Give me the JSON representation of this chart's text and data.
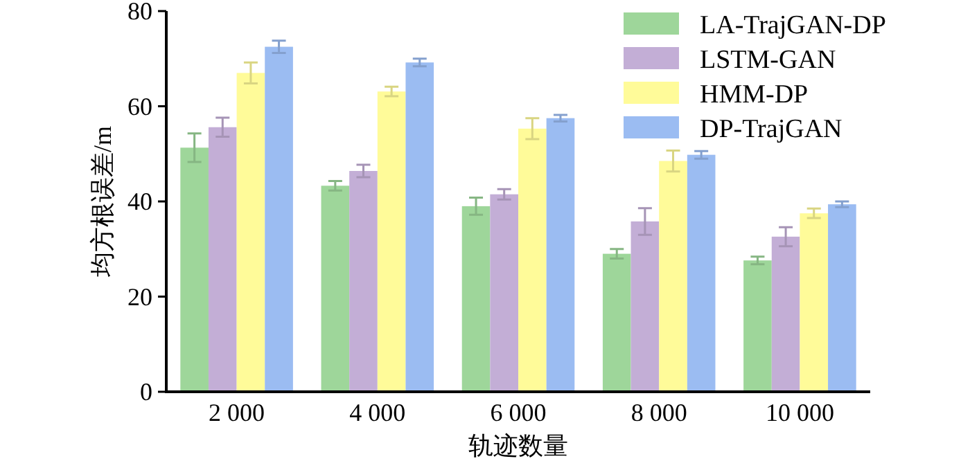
{
  "chart_data": {
    "type": "bar",
    "xlabel": "轨迹数量",
    "ylabel": "均方根误差/m",
    "categories": [
      "2 000",
      "4 000",
      "6 000",
      "8 000",
      "10 000"
    ],
    "series": [
      {
        "name": "LA-TrajGAN-DP",
        "color": "#9ed69a",
        "values": [
          51.3,
          43.3,
          39,
          29,
          27.6
        ],
        "errors": [
          3,
          1,
          1.8,
          1,
          0.8
        ]
      },
      {
        "name": "LSTM-GAN",
        "color": "#c3aed6",
        "values": [
          55.6,
          46.4,
          41.5,
          35.8,
          32.6
        ],
        "errors": [
          2,
          1.3,
          1.1,
          2.8,
          2
        ]
      },
      {
        "name": "HMM-DP",
        "color": "#fffb99",
        "values": [
          67,
          63.1,
          55.3,
          48.5,
          37.5
        ],
        "errors": [
          2.2,
          1,
          2.2,
          2.2,
          1
        ]
      },
      {
        "name": "DP-TrajGAN",
        "color": "#9bbcf2",
        "values": [
          72.5,
          69.2,
          57.5,
          49.8,
          39.4
        ],
        "errors": [
          1.3,
          0.8,
          0.7,
          0.8,
          0.6
        ]
      }
    ],
    "ylim": [
      0,
      80
    ],
    "yticks": [
      0,
      20,
      40,
      60,
      80
    ],
    "legend": "top right"
  }
}
